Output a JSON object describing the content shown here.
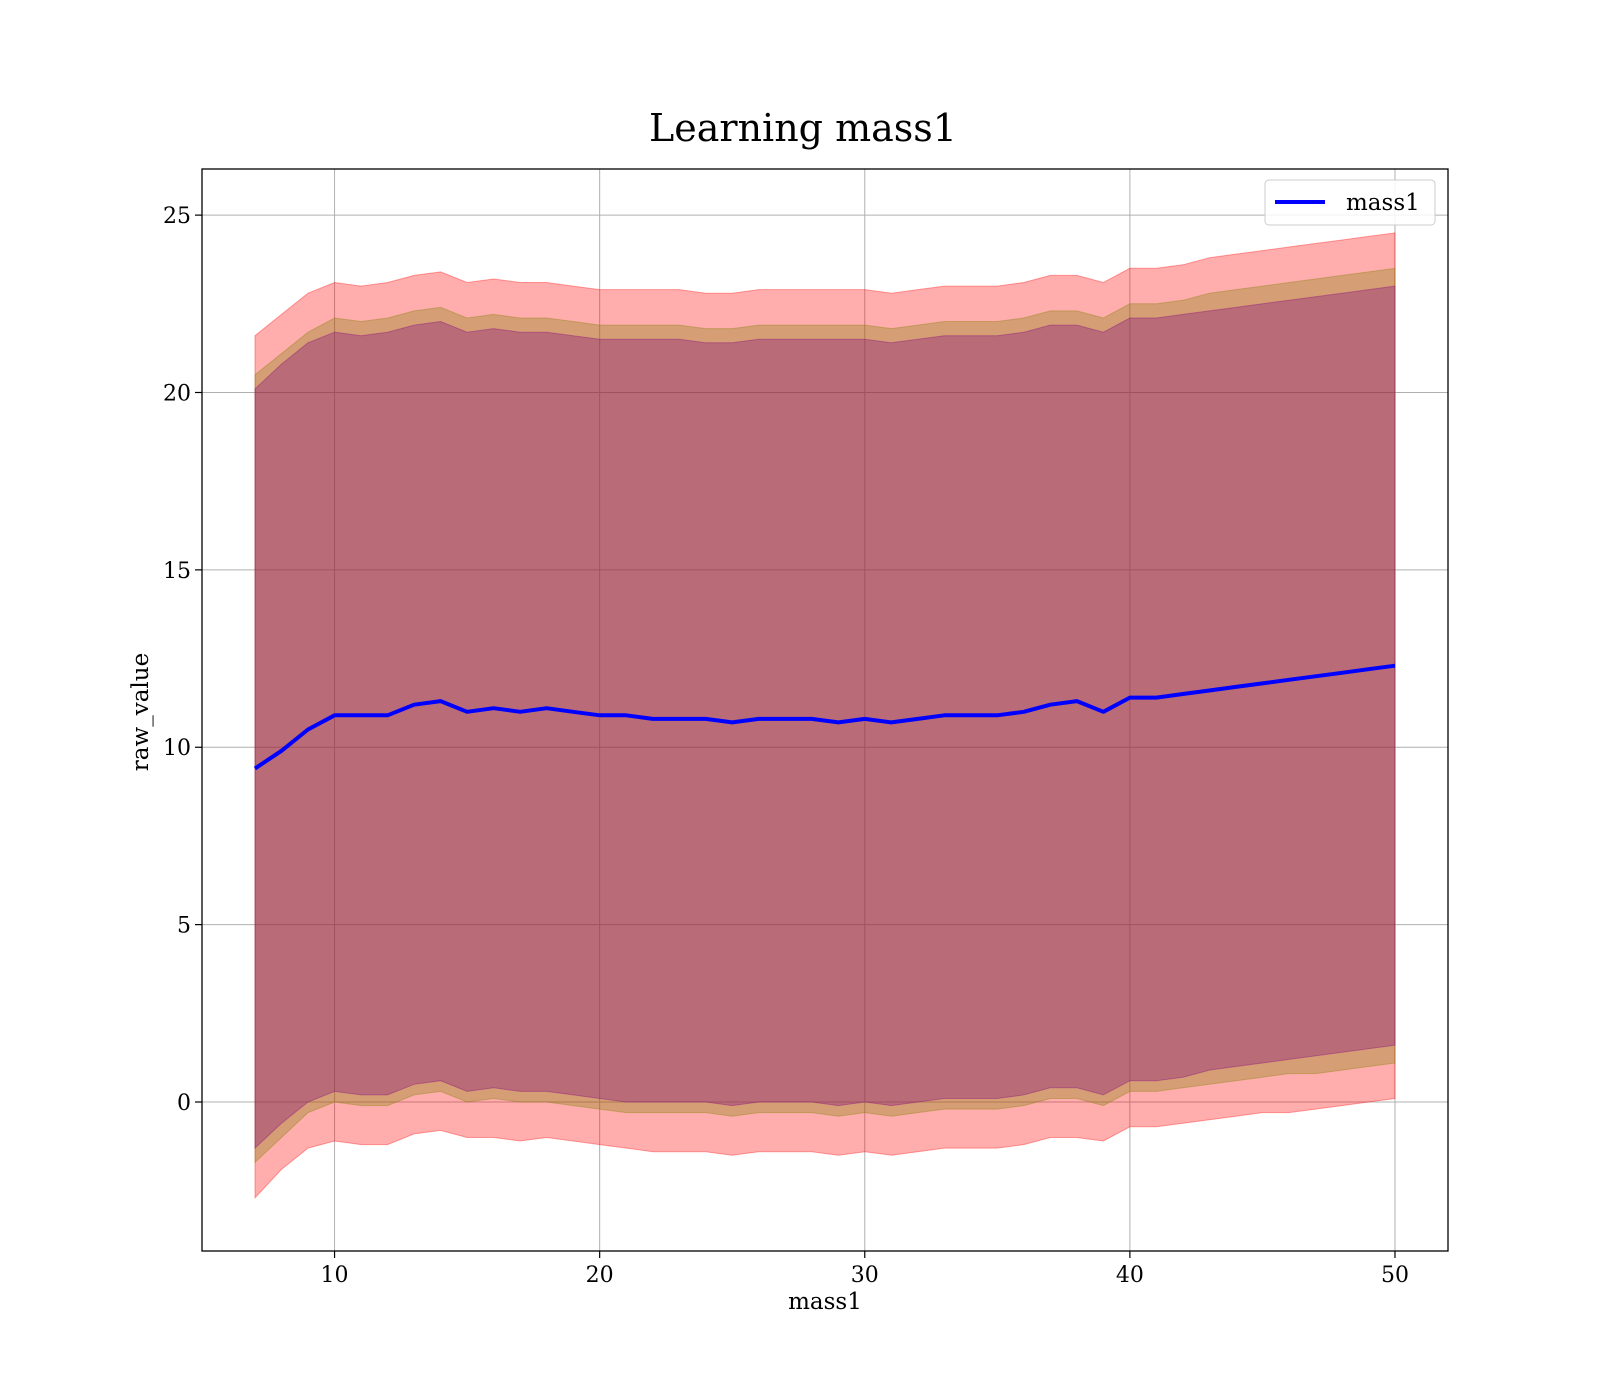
{
  "chart_data": {
    "type": "line",
    "title": "Learning mass1",
    "xlabel": "mass1",
    "ylabel": "raw_value",
    "xlim": [
      5,
      52
    ],
    "ylim": [
      -4.2,
      26.3
    ],
    "xticks": [
      10,
      20,
      30,
      40,
      50
    ],
    "yticks": [
      0,
      5,
      10,
      15,
      20,
      25
    ],
    "grid": true,
    "legend_position": "top-right",
    "series": [
      {
        "name": "mass1",
        "color": "#0000ff",
        "x": [
          7,
          8,
          9,
          10,
          11,
          12,
          13,
          14,
          15,
          16,
          17,
          18,
          19,
          20,
          21,
          22,
          23,
          24,
          25,
          26,
          27,
          28,
          29,
          30,
          31,
          32,
          33,
          34,
          35,
          36,
          37,
          38,
          39,
          40,
          41,
          42,
          43,
          44,
          45,
          46,
          47,
          48,
          49,
          50
        ],
        "y": [
          9.4,
          9.9,
          10.5,
          10.9,
          10.9,
          10.9,
          11.2,
          11.3,
          11.0,
          11.1,
          11.0,
          11.1,
          11.0,
          10.9,
          10.9,
          10.8,
          10.8,
          10.8,
          10.7,
          10.8,
          10.8,
          10.8,
          10.7,
          10.8,
          10.7,
          10.8,
          10.9,
          10.9,
          10.9,
          11.0,
          11.2,
          11.3,
          11.0,
          11.4,
          11.4,
          11.5,
          11.6,
          11.7,
          11.8,
          11.9,
          12.0,
          12.1,
          12.2,
          12.3
        ]
      }
    ],
    "bands": [
      {
        "color": "#ff0000",
        "opacity": 0.32,
        "x": [
          7,
          8,
          9,
          10,
          11,
          12,
          13,
          14,
          15,
          16,
          17,
          18,
          19,
          20,
          21,
          22,
          23,
          24,
          25,
          26,
          27,
          28,
          29,
          30,
          31,
          32,
          33,
          34,
          35,
          36,
          37,
          38,
          39,
          40,
          41,
          42,
          43,
          44,
          45,
          46,
          47,
          48,
          49,
          50
        ],
        "upper": [
          21.6,
          22.2,
          22.8,
          23.1,
          23.0,
          23.1,
          23.3,
          23.4,
          23.1,
          23.2,
          23.1,
          23.1,
          23.0,
          22.9,
          22.9,
          22.9,
          22.9,
          22.8,
          22.8,
          22.9,
          22.9,
          22.9,
          22.9,
          22.9,
          22.8,
          22.9,
          23.0,
          23.0,
          23.0,
          23.1,
          23.3,
          23.3,
          23.1,
          23.5,
          23.5,
          23.6,
          23.8,
          23.9,
          24.0,
          24.1,
          24.2,
          24.3,
          24.4,
          24.5
        ],
        "lower": [
          -2.7,
          -1.9,
          -1.3,
          -1.1,
          -1.2,
          -1.2,
          -0.9,
          -0.8,
          -1.0,
          -1.0,
          -1.1,
          -1.0,
          -1.1,
          -1.2,
          -1.3,
          -1.4,
          -1.4,
          -1.4,
          -1.5,
          -1.4,
          -1.4,
          -1.4,
          -1.5,
          -1.4,
          -1.5,
          -1.4,
          -1.3,
          -1.3,
          -1.3,
          -1.2,
          -1.0,
          -1.0,
          -1.1,
          -0.7,
          -0.7,
          -0.6,
          -0.5,
          -0.4,
          -0.3,
          -0.3,
          -0.2,
          -0.1,
          0.0,
          0.1
        ]
      },
      {
        "color": "#808000",
        "opacity": 0.32,
        "x": [
          7,
          8,
          9,
          10,
          11,
          12,
          13,
          14,
          15,
          16,
          17,
          18,
          19,
          20,
          21,
          22,
          23,
          24,
          25,
          26,
          27,
          28,
          29,
          30,
          31,
          32,
          33,
          34,
          35,
          36,
          37,
          38,
          39,
          40,
          41,
          42,
          43,
          44,
          45,
          46,
          47,
          48,
          49,
          50
        ],
        "upper": [
          20.5,
          21.1,
          21.7,
          22.1,
          22.0,
          22.1,
          22.3,
          22.4,
          22.1,
          22.2,
          22.1,
          22.1,
          22.0,
          21.9,
          21.9,
          21.9,
          21.9,
          21.8,
          21.8,
          21.9,
          21.9,
          21.9,
          21.9,
          21.9,
          21.8,
          21.9,
          22.0,
          22.0,
          22.0,
          22.1,
          22.3,
          22.3,
          22.1,
          22.5,
          22.5,
          22.6,
          22.8,
          22.9,
          23.0,
          23.1,
          23.2,
          23.3,
          23.4,
          23.5
        ],
        "lower": [
          -1.7,
          -1.0,
          -0.3,
          0.0,
          -0.1,
          -0.1,
          0.2,
          0.3,
          0.0,
          0.1,
          0.0,
          0.0,
          -0.1,
          -0.2,
          -0.3,
          -0.3,
          -0.3,
          -0.3,
          -0.4,
          -0.3,
          -0.3,
          -0.3,
          -0.4,
          -0.3,
          -0.4,
          -0.3,
          -0.2,
          -0.2,
          -0.2,
          -0.1,
          0.1,
          0.1,
          -0.1,
          0.3,
          0.3,
          0.4,
          0.5,
          0.6,
          0.7,
          0.8,
          0.8,
          0.9,
          1.0,
          1.1
        ]
      },
      {
        "color": "#800080",
        "opacity": 0.32,
        "x": [
          7,
          8,
          9,
          10,
          11,
          12,
          13,
          14,
          15,
          16,
          17,
          18,
          19,
          20,
          21,
          22,
          23,
          24,
          25,
          26,
          27,
          28,
          29,
          30,
          31,
          32,
          33,
          34,
          35,
          36,
          37,
          38,
          39,
          40,
          41,
          42,
          43,
          44,
          45,
          46,
          47,
          48,
          49,
          50
        ],
        "upper": [
          20.1,
          20.8,
          21.4,
          21.7,
          21.6,
          21.7,
          21.9,
          22.0,
          21.7,
          21.8,
          21.7,
          21.7,
          21.6,
          21.5,
          21.5,
          21.5,
          21.5,
          21.4,
          21.4,
          21.5,
          21.5,
          21.5,
          21.5,
          21.5,
          21.4,
          21.5,
          21.6,
          21.6,
          21.6,
          21.7,
          21.9,
          21.9,
          21.7,
          22.1,
          22.1,
          22.2,
          22.3,
          22.4,
          22.5,
          22.6,
          22.7,
          22.8,
          22.9,
          23.0
        ],
        "lower": [
          -1.3,
          -0.6,
          0.0,
          0.3,
          0.2,
          0.2,
          0.5,
          0.6,
          0.3,
          0.4,
          0.3,
          0.3,
          0.2,
          0.1,
          0.0,
          0.0,
          0.0,
          0.0,
          -0.1,
          0.0,
          0.0,
          0.0,
          -0.1,
          0.0,
          -0.1,
          0.0,
          0.1,
          0.1,
          0.1,
          0.2,
          0.4,
          0.4,
          0.2,
          0.6,
          0.6,
          0.7,
          0.9,
          1.0,
          1.1,
          1.2,
          1.3,
          1.4,
          1.5,
          1.6
        ]
      }
    ]
  }
}
